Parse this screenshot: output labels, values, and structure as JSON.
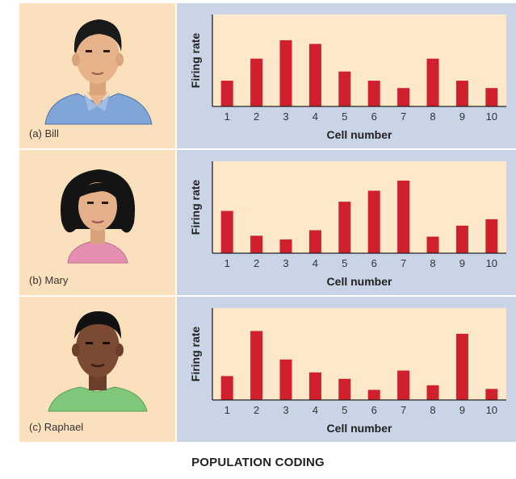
{
  "figure_title": "POPULATION CODING",
  "colors": {
    "bar": "#d0202d",
    "plot_bg": "#fde9c9",
    "panel_bg": "#c9d4e7",
    "portrait_bg": "#fbe0bd"
  },
  "chart_data": [
    {
      "type": "bar",
      "caption": "(a) Bill",
      "person": "Bill",
      "xlabel": "Cell number",
      "ylabel": "Firing rate",
      "categories": [
        "1",
        "2",
        "3",
        "4",
        "5",
        "6",
        "7",
        "8",
        "9",
        "10"
      ],
      "values": [
        2.8,
        5.2,
        7.2,
        6.8,
        3.8,
        2.8,
        2.0,
        5.2,
        2.8,
        2.0
      ],
      "ylim": [
        0,
        10
      ]
    },
    {
      "type": "bar",
      "caption": "(b) Mary",
      "person": "Mary",
      "xlabel": "Cell number",
      "ylabel": "Firing rate",
      "categories": [
        "1",
        "2",
        "3",
        "4",
        "5",
        "6",
        "7",
        "8",
        "9",
        "10"
      ],
      "values": [
        4.6,
        1.9,
        1.5,
        2.5,
        5.6,
        6.8,
        7.9,
        1.8,
        3.0,
        3.7
      ],
      "ylim": [
        0,
        10
      ]
    },
    {
      "type": "bar",
      "caption": "(c) Raphael",
      "person": "Raphael",
      "xlabel": "Cell number",
      "ylabel": "Firing rate",
      "categories": [
        "1",
        "2",
        "3",
        "4",
        "5",
        "6",
        "7",
        "8",
        "9",
        "10"
      ],
      "values": [
        2.6,
        7.5,
        4.4,
        3.0,
        2.3,
        1.1,
        3.2,
        1.6,
        7.2,
        1.2
      ],
      "ylim": [
        0,
        10
      ]
    }
  ]
}
